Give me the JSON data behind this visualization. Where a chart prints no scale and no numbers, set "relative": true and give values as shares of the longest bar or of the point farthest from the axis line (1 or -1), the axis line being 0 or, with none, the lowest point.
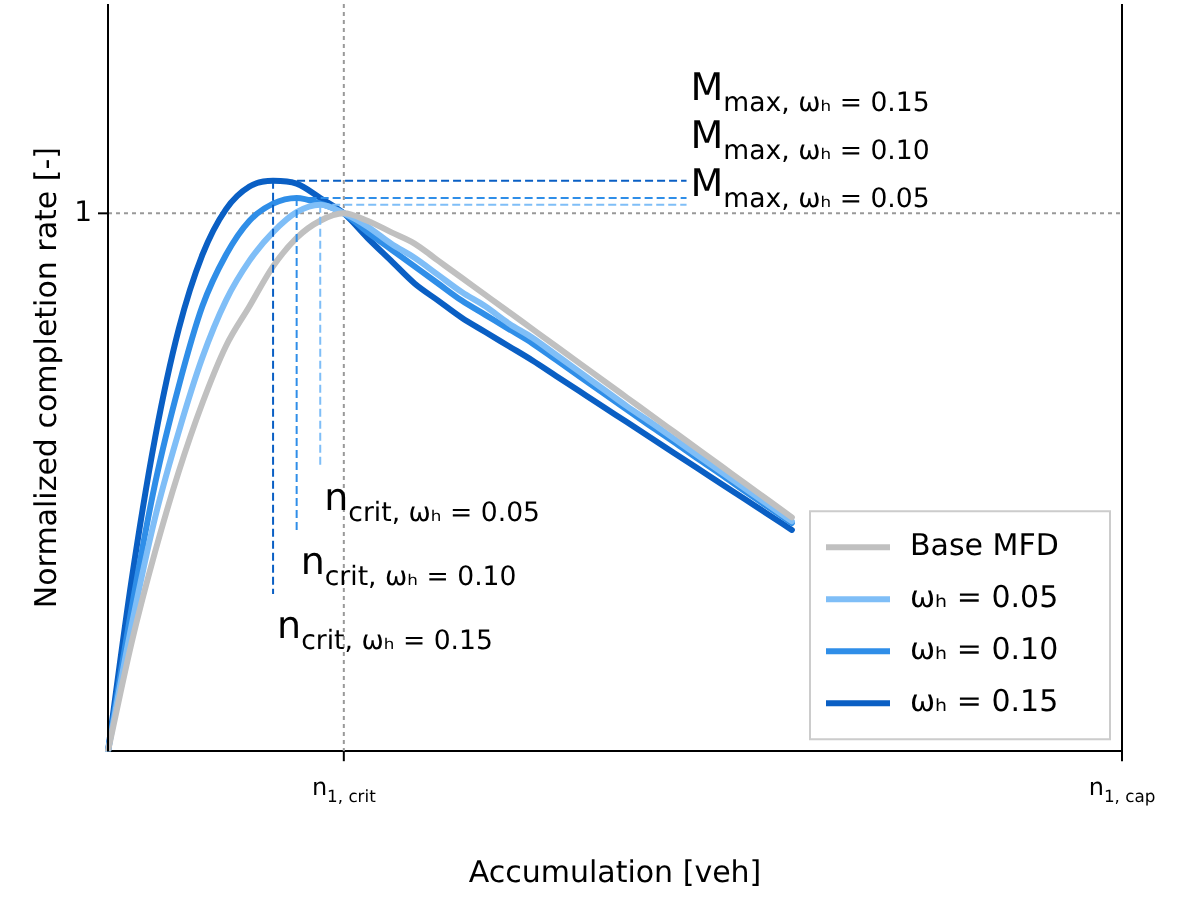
{
  "chart_data": {
    "type": "line",
    "relative": true,
    "xlabel": "Accumulation [veh]",
    "ylabel": "Normalized completion rate [-]",
    "categories": [
      null,
      null,
      null,
      null,
      null,
      null,
      null,
      null,
      null,
      null,
      "n$_{1, crit}$",
      null,
      null,
      null,
      null,
      null,
      null,
      null,
      null,
      null,
      null,
      null,
      null,
      null,
      null,
      null,
      null,
      null,
      null,
      null,
      null,
      null,
      null,
      null,
      null,
      null,
      null,
      null,
      null,
      null,
      null,
      null,
      null,
      "n$_{1, cap}$"
    ],
    "legend": "bottom right",
    "marker": "none",
    "line_style": "solid",
    "ref_lines": [
      {
        "axis": "y",
        "value": 0.943,
        "label": "1",
        "color": "#999999",
        "line_style": "dotted"
      },
      {
        "axis": "x",
        "value": "n$_{1, crit}$",
        "color": "#999999",
        "line_style": "dotted"
      }
    ],
    "series": [
      {
        "name": "Base MFD",
        "color": "#c0c0c0",
        "values": [
          0,
          0.19,
          0.35,
          0.49,
          0.61,
          0.71,
          0.78,
          0.85,
          0.9,
          0.93,
          0.943,
          0.93,
          0.91,
          0.89,
          0.86,
          0.83,
          0.8,
          0.77,
          0.74,
          0.71,
          0.68,
          0.65,
          0.62,
          0.59,
          0.56,
          0.53,
          0.5,
          0.47,
          0.44,
          0.41,
          null,
          null,
          null,
          null,
          null,
          null,
          null,
          null,
          null,
          null,
          null,
          null,
          null,
          null
        ]
      },
      {
        "name": "ωₕ = 0.05",
        "color": "#7fbef7",
        "values": [
          0,
          0.22,
          0.41,
          0.56,
          0.69,
          0.79,
          0.86,
          0.91,
          0.945,
          0.958,
          0.943,
          0.92,
          0.89,
          0.865,
          0.835,
          0.805,
          0.78,
          0.75,
          0.725,
          0.695,
          0.665,
          0.635,
          0.605,
          0.577,
          0.548,
          0.519,
          0.49,
          0.461,
          0.432,
          0.403,
          null,
          null,
          null,
          null,
          null,
          null,
          null,
          null,
          null,
          null,
          null,
          null,
          null,
          null
        ]
      },
      {
        "name": "ωₕ = 0.10",
        "color": "#2f8ee8",
        "values": [
          0,
          0.25,
          0.47,
          0.64,
          0.78,
          0.87,
          0.93,
          0.96,
          0.97,
          0.96,
          0.943,
          0.91,
          0.88,
          0.85,
          0.82,
          0.79,
          0.765,
          0.74,
          0.715,
          0.686,
          0.657,
          0.628,
          0.599,
          0.57,
          0.542,
          0.513,
          0.485,
          0.456,
          0.428,
          0.4,
          null,
          null,
          null,
          null,
          null,
          null,
          null,
          null,
          null,
          null,
          null,
          null,
          null,
          null
        ]
      },
      {
        "name": "ωₕ = 0.15",
        "color": "#0a5fc4",
        "values": [
          0,
          0.3,
          0.55,
          0.74,
          0.87,
          0.95,
          0.99,
          1,
          0.995,
          0.97,
          0.943,
          0.9,
          0.86,
          0.82,
          0.79,
          0.76,
          0.735,
          0.71,
          0.685,
          0.658,
          0.631,
          0.604,
          0.577,
          0.55,
          0.523,
          0.496,
          0.469,
          0.442,
          0.415,
          0.388,
          null,
          null,
          null,
          null,
          null,
          null,
          null,
          null,
          null,
          null,
          null,
          null,
          null,
          null
        ]
      }
    ],
    "annotations": [
      "M$_{max, ωₕ = 0.15}$",
      "M$_{max, ωₕ = 0.10}$",
      "M$_{max, ωₕ = 0.05}$",
      "n$_{crit, ωₕ = 0.05}$",
      "n$_{crit, ωₕ = 0.10}$",
      "n$_{crit, ωₕ = 0.15}$"
    ]
  }
}
